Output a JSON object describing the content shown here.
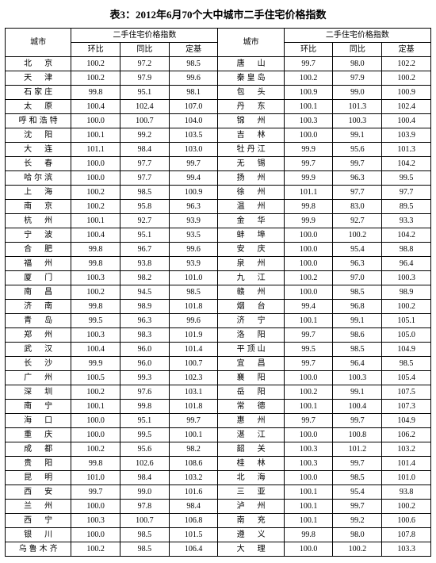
{
  "title": "表3：2012年6月70个大中城市二手住宅价格指数",
  "header": {
    "city": "城市",
    "group": "二手住宅价格指数",
    "cols": [
      "环比",
      "同比",
      "定基"
    ]
  },
  "rows": [
    {
      "l": {
        "city": "北　京",
        "v": [
          "100.2",
          "97.2",
          "98.5"
        ]
      },
      "r": {
        "city": "唐　山",
        "v": [
          "99.7",
          "98.0",
          "102.2"
        ]
      }
    },
    {
      "l": {
        "city": "天　津",
        "v": [
          "100.2",
          "97.9",
          "99.6"
        ]
      },
      "r": {
        "city": "秦皇岛",
        "v": [
          "100.2",
          "97.9",
          "100.2"
        ]
      }
    },
    {
      "l": {
        "city": "石家庄",
        "v": [
          "99.8",
          "95.1",
          "98.1"
        ]
      },
      "r": {
        "city": "包　头",
        "v": [
          "100.9",
          "99.0",
          "100.9"
        ]
      }
    },
    {
      "l": {
        "city": "太　原",
        "v": [
          "100.4",
          "102.4",
          "107.0"
        ]
      },
      "r": {
        "city": "丹　东",
        "v": [
          "100.1",
          "101.3",
          "102.4"
        ]
      }
    },
    {
      "l": {
        "city": "呼和浩特",
        "v": [
          "100.0",
          "100.7",
          "104.0"
        ]
      },
      "r": {
        "city": "锦　州",
        "v": [
          "100.3",
          "100.3",
          "100.4"
        ]
      }
    },
    {
      "l": {
        "city": "沈　阳",
        "v": [
          "100.1",
          "99.2",
          "103.5"
        ]
      },
      "r": {
        "city": "吉　林",
        "v": [
          "100.0",
          "99.1",
          "103.9"
        ]
      }
    },
    {
      "l": {
        "city": "大　连",
        "v": [
          "101.1",
          "98.4",
          "103.0"
        ]
      },
      "r": {
        "city": "牡丹江",
        "v": [
          "99.9",
          "95.6",
          "101.3"
        ]
      }
    },
    {
      "l": {
        "city": "长　春",
        "v": [
          "100.0",
          "97.7",
          "99.7"
        ]
      },
      "r": {
        "city": "无　锡",
        "v": [
          "99.7",
          "99.7",
          "104.2"
        ]
      }
    },
    {
      "l": {
        "city": "哈尔滨",
        "v": [
          "100.0",
          "97.7",
          "99.4"
        ]
      },
      "r": {
        "city": "扬　州",
        "v": [
          "99.9",
          "96.3",
          "99.5"
        ]
      }
    },
    {
      "l": {
        "city": "上　海",
        "v": [
          "100.2",
          "98.5",
          "100.9"
        ]
      },
      "r": {
        "city": "徐　州",
        "v": [
          "101.1",
          "97.7",
          "97.7"
        ]
      }
    },
    {
      "l": {
        "city": "南　京",
        "v": [
          "100.2",
          "95.8",
          "96.3"
        ]
      },
      "r": {
        "city": "温　州",
        "v": [
          "99.8",
          "83.0",
          "89.5"
        ]
      }
    },
    {
      "l": {
        "city": "杭　州",
        "v": [
          "100.1",
          "92.7",
          "93.9"
        ]
      },
      "r": {
        "city": "金　华",
        "v": [
          "99.9",
          "92.7",
          "93.3"
        ]
      }
    },
    {
      "l": {
        "city": "宁　波",
        "v": [
          "100.4",
          "95.1",
          "93.5"
        ]
      },
      "r": {
        "city": "蚌　埠",
        "v": [
          "100.0",
          "100.2",
          "104.2"
        ]
      }
    },
    {
      "l": {
        "city": "合　肥",
        "v": [
          "99.8",
          "96.7",
          "99.6"
        ]
      },
      "r": {
        "city": "安　庆",
        "v": [
          "100.0",
          "95.4",
          "98.8"
        ]
      }
    },
    {
      "l": {
        "city": "福　州",
        "v": [
          "99.8",
          "93.8",
          "93.9"
        ]
      },
      "r": {
        "city": "泉　州",
        "v": [
          "100.0",
          "96.3",
          "96.4"
        ]
      }
    },
    {
      "l": {
        "city": "厦　门",
        "v": [
          "100.3",
          "98.2",
          "101.0"
        ]
      },
      "r": {
        "city": "九　江",
        "v": [
          "100.2",
          "97.0",
          "100.3"
        ]
      }
    },
    {
      "l": {
        "city": "南　昌",
        "v": [
          "100.2",
          "94.5",
          "98.5"
        ]
      },
      "r": {
        "city": "赣　州",
        "v": [
          "100.0",
          "98.5",
          "98.9"
        ]
      }
    },
    {
      "l": {
        "city": "济　南",
        "v": [
          "99.8",
          "98.9",
          "101.8"
        ]
      },
      "r": {
        "city": "烟　台",
        "v": [
          "99.4",
          "96.8",
          "100.2"
        ]
      }
    },
    {
      "l": {
        "city": "青　岛",
        "v": [
          "99.5",
          "96.3",
          "99.6"
        ]
      },
      "r": {
        "city": "济　宁",
        "v": [
          "100.1",
          "99.1",
          "105.1"
        ]
      }
    },
    {
      "l": {
        "city": "郑　州",
        "v": [
          "100.3",
          "98.3",
          "101.9"
        ]
      },
      "r": {
        "city": "洛　阳",
        "v": [
          "99.7",
          "98.6",
          "105.0"
        ]
      }
    },
    {
      "l": {
        "city": "武　汉",
        "v": [
          "100.4",
          "96.0",
          "101.4"
        ]
      },
      "r": {
        "city": "平顶山",
        "v": [
          "99.5",
          "98.5",
          "104.9"
        ]
      }
    },
    {
      "l": {
        "city": "长　沙",
        "v": [
          "99.9",
          "96.0",
          "100.7"
        ]
      },
      "r": {
        "city": "宜　昌",
        "v": [
          "99.7",
          "96.4",
          "98.5"
        ]
      }
    },
    {
      "l": {
        "city": "广　州",
        "v": [
          "100.5",
          "99.3",
          "102.3"
        ]
      },
      "r": {
        "city": "襄　阳",
        "v": [
          "100.0",
          "100.3",
          "105.4"
        ]
      }
    },
    {
      "l": {
        "city": "深　圳",
        "v": [
          "100.2",
          "97.6",
          "103.1"
        ]
      },
      "r": {
        "city": "岳　阳",
        "v": [
          "100.2",
          "99.1",
          "107.5"
        ]
      }
    },
    {
      "l": {
        "city": "南　宁",
        "v": [
          "100.1",
          "99.8",
          "101.8"
        ]
      },
      "r": {
        "city": "常　德",
        "v": [
          "100.1",
          "100.4",
          "107.3"
        ]
      }
    },
    {
      "l": {
        "city": "海　口",
        "v": [
          "100.0",
          "95.1",
          "99.7"
        ]
      },
      "r": {
        "city": "惠　州",
        "v": [
          "99.7",
          "99.7",
          "104.9"
        ]
      }
    },
    {
      "l": {
        "city": "重　庆",
        "v": [
          "100.0",
          "99.5",
          "100.1"
        ]
      },
      "r": {
        "city": "湛　江",
        "v": [
          "100.0",
          "100.8",
          "106.2"
        ]
      }
    },
    {
      "l": {
        "city": "成　都",
        "v": [
          "100.2",
          "95.6",
          "98.2"
        ]
      },
      "r": {
        "city": "韶　关",
        "v": [
          "100.3",
          "101.2",
          "103.2"
        ]
      }
    },
    {
      "l": {
        "city": "贵　阳",
        "v": [
          "99.8",
          "102.6",
          "108.6"
        ]
      },
      "r": {
        "city": "桂　林",
        "v": [
          "100.3",
          "99.7",
          "101.4"
        ]
      }
    },
    {
      "l": {
        "city": "昆　明",
        "v": [
          "101.0",
          "98.4",
          "103.2"
        ]
      },
      "r": {
        "city": "北　海",
        "v": [
          "100.0",
          "98.5",
          "101.0"
        ]
      }
    },
    {
      "l": {
        "city": "西　安",
        "v": [
          "99.7",
          "99.0",
          "101.6"
        ]
      },
      "r": {
        "city": "三　亚",
        "v": [
          "100.1",
          "95.4",
          "93.8"
        ]
      }
    },
    {
      "l": {
        "city": "兰　州",
        "v": [
          "100.0",
          "97.8",
          "98.4"
        ]
      },
      "r": {
        "city": "泸　州",
        "v": [
          "100.1",
          "99.7",
          "100.2"
        ]
      }
    },
    {
      "l": {
        "city": "西　宁",
        "v": [
          "100.3",
          "100.7",
          "106.8"
        ]
      },
      "r": {
        "city": "南　充",
        "v": [
          "100.1",
          "99.2",
          "100.6"
        ]
      }
    },
    {
      "l": {
        "city": "银　川",
        "v": [
          "100.0",
          "98.5",
          "101.5"
        ]
      },
      "r": {
        "city": "遵　义",
        "v": [
          "99.8",
          "98.0",
          "107.8"
        ]
      }
    },
    {
      "l": {
        "city": "乌鲁木齐",
        "v": [
          "100.2",
          "98.5",
          "106.4"
        ]
      },
      "r": {
        "city": "大　理",
        "v": [
          "100.0",
          "100.2",
          "103.3"
        ]
      }
    }
  ]
}
